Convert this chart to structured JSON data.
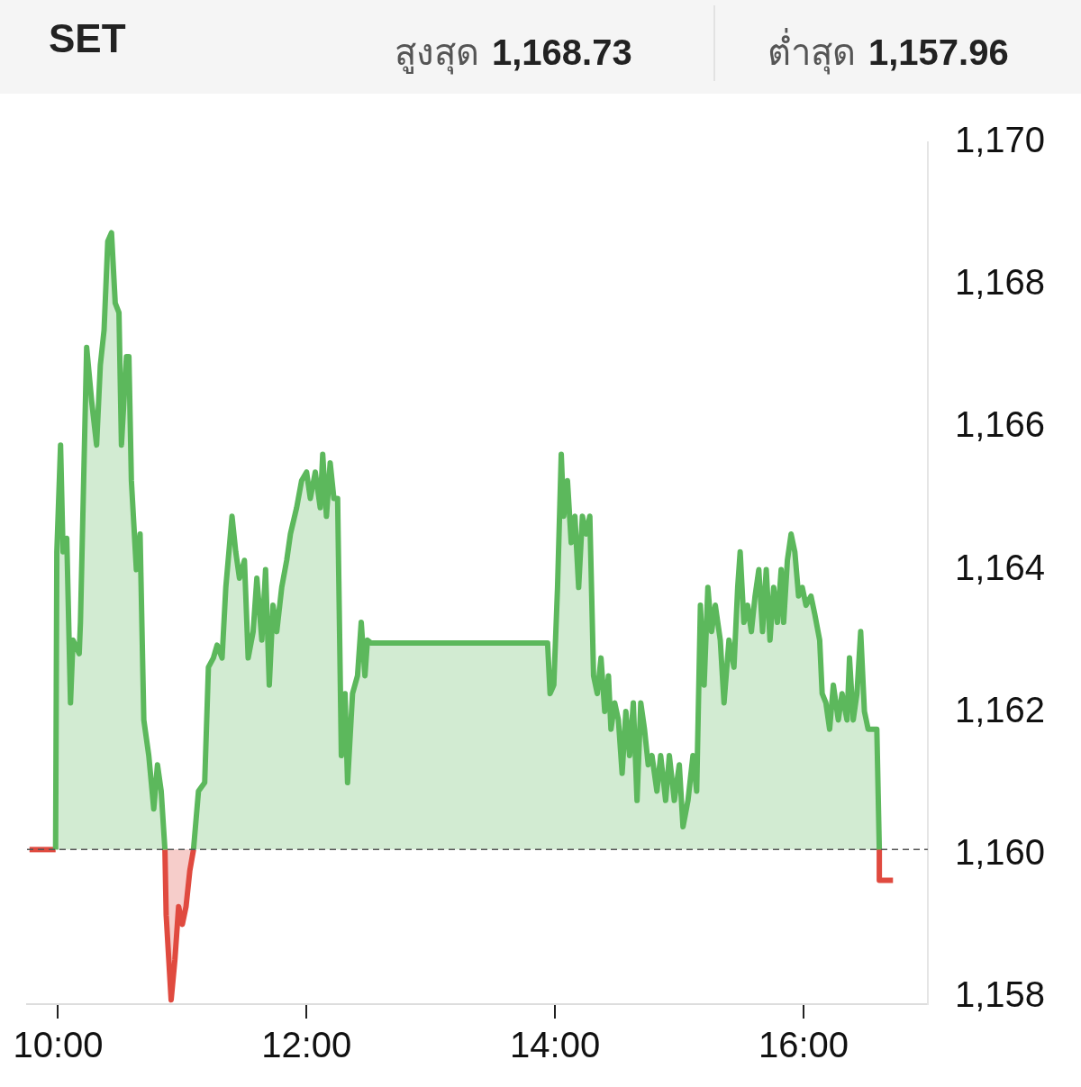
{
  "chart_data": {
    "type": "area",
    "title": "SET",
    "annotations": [
      "สูงสุด 1,168.73",
      "ต่ำสุด 1,157.96"
    ],
    "xlim": [
      9.75,
      17.0
    ],
    "xticks": [
      {
        "value": 10,
        "label": "10:00"
      },
      {
        "value": 12,
        "label": "12:00"
      },
      {
        "value": 14,
        "label": "14:00"
      },
      {
        "value": 16,
        "label": "16:00"
      }
    ],
    "ylim": [
      1157.9,
      1170
    ],
    "yticks": [
      {
        "value": 1158,
        "label": "1,158"
      },
      {
        "value": 1160,
        "label": "1,160"
      },
      {
        "value": 1162,
        "label": "1,162"
      },
      {
        "value": 1164,
        "label": "1,164"
      },
      {
        "value": 1166,
        "label": "1,166"
      },
      {
        "value": 1168,
        "label": "1,168"
      },
      {
        "value": 1170,
        "label": "1,170"
      }
    ],
    "ref_lines": [
      {
        "axis": "y",
        "value": 1160.07,
        "line_style": "dashed",
        "color": "#555555"
      }
    ],
    "grid": false,
    "legend": false,
    "marker": "none",
    "series": [
      {
        "color": "#5cb85c",
        "x": [
          9.98,
          9.99,
          10.02,
          10.04,
          10.07,
          10.1,
          10.12,
          10.17,
          10.18,
          10.23,
          10.27,
          10.31,
          10.34,
          10.37,
          10.4,
          10.43,
          10.46,
          10.49,
          10.51,
          10.55,
          10.57,
          10.59,
          10.63,
          10.66,
          10.69,
          10.73,
          10.77,
          10.8,
          10.83,
          10.86,
          10.97,
          11.09,
          11.13,
          11.18,
          11.21,
          11.25,
          11.28,
          11.32,
          11.35,
          11.4,
          11.43,
          11.46,
          11.5,
          11.53,
          11.57,
          11.6,
          11.64,
          11.67,
          11.7,
          11.73,
          11.76,
          11.8,
          11.84,
          11.87,
          11.92,
          11.96,
          12.0,
          12.03,
          12.07,
          12.11,
          12.13,
          12.16,
          12.19,
          12.22,
          12.25,
          12.28,
          12.31,
          12.33,
          12.37,
          12.41,
          12.44,
          12.47,
          12.49,
          12.52,
          13.94,
          13.96,
          13.99,
          14.02,
          14.05,
          14.07,
          14.1,
          14.13,
          14.16,
          14.19,
          14.22,
          14.25,
          14.28,
          14.31,
          14.34,
          14.37,
          14.4,
          14.43,
          14.45,
          14.48,
          14.51,
          14.54,
          14.57,
          14.6,
          14.63,
          14.66,
          14.69,
          14.72,
          14.75,
          14.78,
          14.82,
          14.85,
          14.89,
          14.92,
          14.96,
          15.0,
          15.03,
          15.07,
          15.11,
          15.14,
          15.17,
          15.2,
          15.23,
          15.26,
          15.29,
          15.33,
          15.36,
          15.4,
          15.44,
          15.47,
          15.49,
          15.52,
          15.55,
          15.58,
          15.61,
          15.64,
          15.67,
          15.7,
          15.73,
          15.76,
          15.79,
          15.82,
          15.84,
          15.87,
          15.9,
          15.93,
          15.96,
          15.99,
          16.02,
          16.06,
          16.09,
          16.13,
          16.15,
          16.18,
          16.21,
          16.24,
          16.28,
          16.31,
          16.35,
          16.37,
          16.4,
          16.43,
          16.46,
          16.49,
          16.52,
          16.59,
          16.61
        ],
        "values": [
          1160.07,
          1164.25,
          1165.75,
          1164.25,
          1164.44,
          1162.13,
          1163.01,
          1162.82,
          1163.26,
          1167.12,
          1166.37,
          1165.75,
          1166.87,
          1167.36,
          1168.61,
          1168.73,
          1167.74,
          1167.61,
          1165.75,
          1166.99,
          1166.99,
          1165.25,
          1164.0,
          1164.5,
          1161.89,
          1161.39,
          1160.64,
          1161.26,
          1160.89,
          1160.07,
          null,
          1160.07,
          1160.89,
          1161.01,
          1162.63,
          1162.76,
          1162.94,
          1162.76,
          1163.75,
          1164.75,
          1164.25,
          1163.88,
          1164.13,
          1162.76,
          1163.13,
          1163.88,
          1163.01,
          1164.0,
          1162.38,
          1163.5,
          1163.13,
          1163.75,
          1164.13,
          1164.5,
          1164.87,
          1165.25,
          1165.37,
          1165.0,
          1165.37,
          1164.87,
          1165.62,
          1164.75,
          1165.5,
          1165.0,
          1165.0,
          1161.39,
          1162.26,
          1161.01,
          1162.26,
          1162.51,
          1163.26,
          1162.51,
          1163.01,
          1162.97,
          1162.97,
          1162.26,
          1162.38,
          1163.75,
          1165.62,
          1164.75,
          1165.25,
          1164.38,
          1164.75,
          1163.75,
          1164.75,
          1164.5,
          1164.75,
          1162.51,
          1162.26,
          1162.76,
          1162.01,
          1162.51,
          1161.76,
          1162.13,
          1161.89,
          1161.14,
          1162.01,
          1161.39,
          1162.13,
          1160.76,
          1162.13,
          1161.76,
          1161.26,
          1161.39,
          1160.89,
          1161.39,
          1160.76,
          1161.39,
          1160.76,
          1161.26,
          1160.39,
          1160.76,
          1161.39,
          1160.89,
          1163.5,
          1162.38,
          1163.75,
          1163.13,
          1163.5,
          1163.01,
          1162.13,
          1163.01,
          1162.63,
          1163.75,
          1164.25,
          1163.26,
          1163.5,
          1163.13,
          1163.63,
          1164.0,
          1163.13,
          1164.0,
          1163.01,
          1163.75,
          1163.26,
          1164.0,
          1163.26,
          1164.13,
          1164.5,
          1164.25,
          1163.63,
          1163.75,
          1163.5,
          1163.63,
          1163.38,
          1163.01,
          1162.26,
          1162.13,
          1161.76,
          1162.38,
          1161.89,
          1162.26,
          1161.89,
          1162.76,
          1161.89,
          1162.26,
          1163.13,
          1162.01,
          1161.76,
          1161.76,
          1160.07
        ]
      },
      {
        "color": "#e04a3f",
        "type": "line",
        "x": [
          9.77,
          9.98
        ],
        "values": [
          1160.07,
          1160.07
        ]
      },
      {
        "color": "#e04a3f",
        "x": [
          10.86,
          10.87,
          10.91,
          10.94,
          10.97,
          11.0,
          11.03,
          11.06,
          11.09
        ],
        "values": [
          1160.07,
          1159.15,
          1157.96,
          1158.52,
          1159.27,
          1159.02,
          1159.27,
          1159.77,
          1160.07
        ]
      },
      {
        "color": "#e04a3f",
        "type": "line",
        "x": [
          16.61,
          16.61,
          16.72
        ],
        "values": [
          1160.07,
          1159.64,
          1159.64
        ]
      }
    ]
  }
}
